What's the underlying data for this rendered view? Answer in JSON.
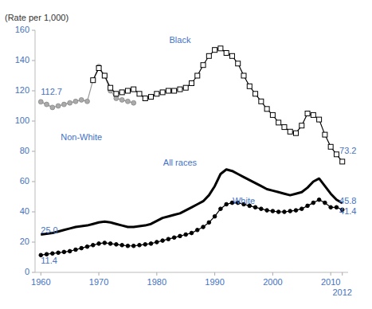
{
  "chart_data": {
    "type": "line",
    "y_label": "(Rate per 1,000)",
    "color": "#4472C4",
    "xlim": [
      1959,
      2013
    ],
    "xticks": [
      1960,
      1970,
      1980,
      1990,
      2000,
      2010,
      2012
    ],
    "ylim": [
      0,
      160
    ],
    "yticks": [
      0,
      20,
      40,
      60,
      80,
      100,
      120,
      140,
      160
    ],
    "grid": false,
    "series": [
      {
        "name": "Non-White",
        "color": "#999999",
        "marker": "circle",
        "line_style": "solid",
        "label_x": 1967,
        "label_y": 89,
        "x": [
          1960,
          1961,
          1962,
          1963,
          1964,
          1965,
          1966,
          1967,
          1968,
          1969,
          1970,
          1971,
          1972,
          1973,
          1974,
          1975,
          1976
        ],
        "values": [
          112.7,
          111,
          109,
          110,
          111,
          112,
          113,
          114,
          113,
          127,
          136,
          130,
          120,
          115,
          114,
          113,
          112
        ]
      },
      {
        "name": "Black",
        "color": "#000000",
        "marker": "open-square",
        "line_style": "solid",
        "label_x": 1984,
        "label_y": 153,
        "x": [
          1969,
          1970,
          1971,
          1972,
          1973,
          1974,
          1975,
          1976,
          1977,
          1978,
          1979,
          1980,
          1981,
          1982,
          1983,
          1984,
          1985,
          1986,
          1987,
          1988,
          1989,
          1990,
          1991,
          1992,
          1993,
          1994,
          1995,
          1996,
          1997,
          1998,
          1999,
          2000,
          2001,
          2002,
          2003,
          2004,
          2005,
          2006,
          2007,
          2008,
          2009,
          2010,
          2011,
          2012
        ],
        "values": [
          127,
          135,
          130,
          122,
          118,
          119,
          120,
          121,
          118,
          115,
          116,
          118,
          119,
          120,
          120,
          121,
          122,
          125,
          130,
          137,
          143,
          147,
          148,
          145,
          143,
          138,
          130,
          123,
          118,
          113,
          108,
          104,
          99,
          96,
          93,
          92,
          97,
          105,
          104,
          101,
          91,
          83,
          78,
          73.2
        ]
      },
      {
        "name": "All races",
        "color": "#000000",
        "marker": "none",
        "line_style": "thick",
        "label_x": 1984,
        "label_y": 72,
        "x": [
          1960,
          1961,
          1962,
          1963,
          1964,
          1965,
          1966,
          1967,
          1968,
          1969,
          1970,
          1971,
          1972,
          1973,
          1974,
          1975,
          1976,
          1977,
          1978,
          1979,
          1980,
          1981,
          1982,
          1983,
          1984,
          1985,
          1986,
          1987,
          1988,
          1989,
          1990,
          1991,
          1992,
          1993,
          1994,
          1995,
          1996,
          1997,
          1998,
          1999,
          2000,
          2001,
          2002,
          2003,
          2004,
          2005,
          2006,
          2007,
          2008,
          2009,
          2010,
          2011,
          2012
        ],
        "values": [
          25.0,
          25.5,
          26,
          27,
          28,
          29,
          30,
          30.5,
          31,
          32,
          33,
          33.5,
          33,
          32,
          31,
          30,
          30,
          30.5,
          31,
          32,
          34,
          36,
          37,
          38,
          39,
          41,
          43,
          45,
          47,
          51,
          57,
          65,
          68,
          67,
          65,
          63,
          61,
          59,
          57,
          55,
          54,
          53,
          52,
          51,
          52,
          53,
          56,
          60,
          62,
          57,
          52,
          48,
          45.8
        ]
      },
      {
        "name": "White",
        "color": "#000000",
        "marker": "circle",
        "line_style": "solid",
        "label_x": 1995,
        "label_y": 47,
        "x": [
          1960,
          1961,
          1962,
          1963,
          1964,
          1965,
          1966,
          1967,
          1968,
          1969,
          1970,
          1971,
          1972,
          1973,
          1974,
          1975,
          1976,
          1977,
          1978,
          1979,
          1980,
          1981,
          1982,
          1983,
          1984,
          1985,
          1986,
          1987,
          1988,
          1989,
          1990,
          1991,
          1992,
          1993,
          1994,
          1995,
          1996,
          1997,
          1998,
          1999,
          2000,
          2001,
          2002,
          2003,
          2004,
          2005,
          2006,
          2007,
          2008,
          2009,
          2010,
          2011,
          2012
        ],
        "values": [
          11.4,
          12,
          12.5,
          13,
          13.5,
          14,
          15,
          16,
          17,
          18,
          19,
          19.5,
          19,
          18.5,
          18,
          17.5,
          17.5,
          18,
          18.5,
          19,
          20,
          21,
          22,
          23,
          24,
          25,
          26,
          28,
          30,
          33,
          37,
          42,
          45,
          46,
          46,
          45,
          44,
          43,
          42,
          41,
          40.5,
          40,
          40,
          40.5,
          41,
          42,
          44,
          46,
          48,
          46,
          43,
          43,
          41.4
        ]
      }
    ],
    "annotations": [
      {
        "text": "112.7",
        "x": 1960.0,
        "y": 119
      },
      {
        "text": "73.2",
        "x": 2011.5,
        "y": 80
      },
      {
        "text": "25.0",
        "x": 1960.0,
        "y": 27.5
      },
      {
        "text": "45.8",
        "x": 2011.5,
        "y": 47
      },
      {
        "text": "11.4",
        "x": 1960.0,
        "y": 7.5
      },
      {
        "text": "41.4",
        "x": 2011.5,
        "y": 40
      }
    ]
  }
}
